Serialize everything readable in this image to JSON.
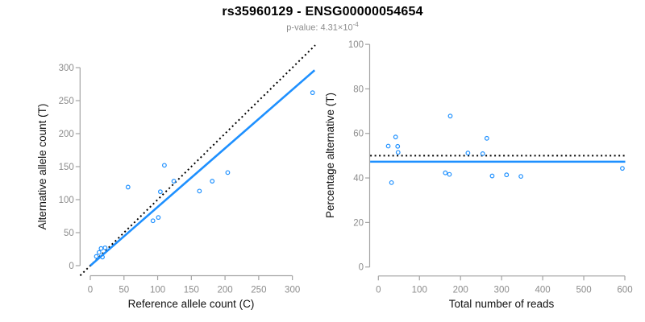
{
  "header": {
    "title": "rs35960129 - ENSG00000054654",
    "pvalue_prefix": "p-value: ",
    "pvalue_base": "4.31×10",
    "pvalue_exponent": "-4"
  },
  "colors": {
    "accent_blue": "#1E90FF",
    "identity_black": "#000000",
    "axis_line": "#a3a3a3",
    "tick_text": "#8c8c8c",
    "axis_label_text": "#111111",
    "background": "#ffffff"
  },
  "chart_data": [
    {
      "type": "scatter",
      "panel": "left",
      "xlabel": "Reference allele count (C)",
      "ylabel": "Alternative allele count (T)",
      "xlim": [
        0,
        300
      ],
      "ylim": [
        0,
        300
      ],
      "xticks": [
        0,
        50,
        100,
        150,
        200,
        250,
        300
      ],
      "yticks": [
        0,
        50,
        100,
        150,
        200,
        250,
        300
      ],
      "grid": false,
      "points": [
        [
          9,
          14
        ],
        [
          13,
          20
        ],
        [
          16,
          26
        ],
        [
          18,
          13
        ],
        [
          22,
          27
        ],
        [
          56,
          119
        ],
        [
          93,
          68
        ],
        [
          101,
          73
        ],
        [
          104,
          112
        ],
        [
          110,
          152
        ],
        [
          124,
          128
        ],
        [
          162,
          113
        ],
        [
          181,
          128
        ],
        [
          204,
          141
        ],
        [
          330,
          262
        ]
      ],
      "lines": [
        {
          "name": "identity-line",
          "style": "dotted",
          "color": "#000000",
          "width": 2,
          "x1": -15,
          "y1": -15,
          "x2": 334,
          "y2": 334
        },
        {
          "name": "regression-line",
          "style": "solid",
          "color": "#1E90FF",
          "width": 2.6,
          "x1": 0,
          "y1": 0,
          "x2": 333,
          "y2": 296
        }
      ]
    },
    {
      "type": "scatter",
      "panel": "right",
      "xlabel": "Total number of reads",
      "ylabel": "Percentage alternative (T)",
      "xlim": [
        0,
        600
      ],
      "ylim": [
        0,
        100
      ],
      "xticks": [
        0,
        100,
        200,
        300,
        400,
        500,
        600
      ],
      "yticks": [
        0,
        20,
        40,
        60,
        80,
        100
      ],
      "grid": false,
      "points": [
        [
          24,
          54.3
        ],
        [
          32,
          37.9
        ],
        [
          42,
          58.4
        ],
        [
          47,
          54.2
        ],
        [
          48,
          51.5
        ],
        [
          163,
          42.3
        ],
        [
          173,
          41.6
        ],
        [
          175,
          67.8
        ],
        [
          218,
          51.2
        ],
        [
          254,
          50.9
        ],
        [
          264,
          57.8
        ],
        [
          277,
          40.9
        ],
        [
          312,
          41.4
        ],
        [
          347,
          40.7
        ],
        [
          594,
          44.3
        ]
      ],
      "lines": [
        {
          "name": "expected-50pct-line",
          "style": "dotted",
          "color": "#000000",
          "width": 2,
          "x1": -20,
          "y1": 50,
          "x2": 601,
          "y2": 50
        },
        {
          "name": "fitted-mean-line",
          "style": "solid",
          "color": "#1E90FF",
          "width": 2.6,
          "x1": -20,
          "y1": 47.3,
          "x2": 601,
          "y2": 47.3
        }
      ]
    }
  ],
  "point_style": {
    "radius": 2.3,
    "stroke_width": 1.2,
    "fill": "none"
  }
}
